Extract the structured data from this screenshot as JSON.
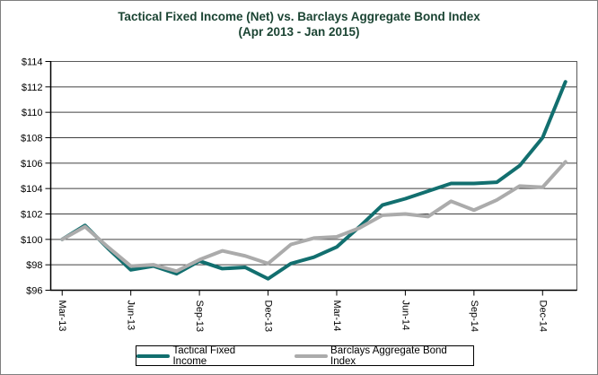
{
  "chart_data": {
    "type": "line",
    "title": "Tactical Fixed Income (Net) vs. Barclays Aggregate Bond Index",
    "subtitle": "(Apr 2013 - Jan 2015)",
    "x": [
      "Mar-13",
      "Apr-13",
      "May-13",
      "Jun-13",
      "Jul-13",
      "Aug-13",
      "Sep-13",
      "Oct-13",
      "Nov-13",
      "Dec-13",
      "Jan-14",
      "Feb-14",
      "Mar-14",
      "Apr-14",
      "May-14",
      "Jun-14",
      "Jul-14",
      "Aug-14",
      "Sep-14",
      "Oct-14",
      "Nov-14",
      "Dec-14",
      "Jan-15"
    ],
    "x_tick_labels": [
      "Mar-13",
      "Jun-13",
      "Sep-13",
      "Dec-13",
      "Mar-14",
      "Jun-14",
      "Sep-14",
      "Dec-14"
    ],
    "x_tick_every": 3,
    "series": [
      {
        "name": "Tactical Fixed Income",
        "color": "#126f6f",
        "values": [
          100.0,
          101.1,
          99.3,
          97.6,
          97.9,
          97.3,
          98.3,
          97.7,
          97.8,
          96.9,
          98.1,
          98.6,
          99.4,
          101.0,
          102.7,
          103.2,
          103.8,
          104.4,
          104.4,
          104.5,
          105.8,
          108.0,
          112.4
        ]
      },
      {
        "name": "Barclays Aggregate Bond Index",
        "color": "#ababab",
        "values": [
          100.0,
          101.0,
          99.4,
          97.9,
          98.0,
          97.5,
          98.4,
          99.1,
          98.7,
          98.1,
          99.6,
          100.1,
          100.2,
          100.9,
          101.9,
          102.0,
          101.8,
          103.0,
          102.3,
          103.1,
          104.2,
          104.1,
          106.1
        ]
      }
    ],
    "xlabel": "",
    "ylabel": "",
    "ylim": [
      96,
      114
    ],
    "ystep": 2,
    "y_tick_prefix": "$",
    "grid": true,
    "legend_position": "bottom"
  },
  "colors": {
    "title_text": "#1b4433",
    "axis": "#000000",
    "gridline": "#404040",
    "plot_border": "#595959",
    "outer_border": "#7f7f7f"
  }
}
